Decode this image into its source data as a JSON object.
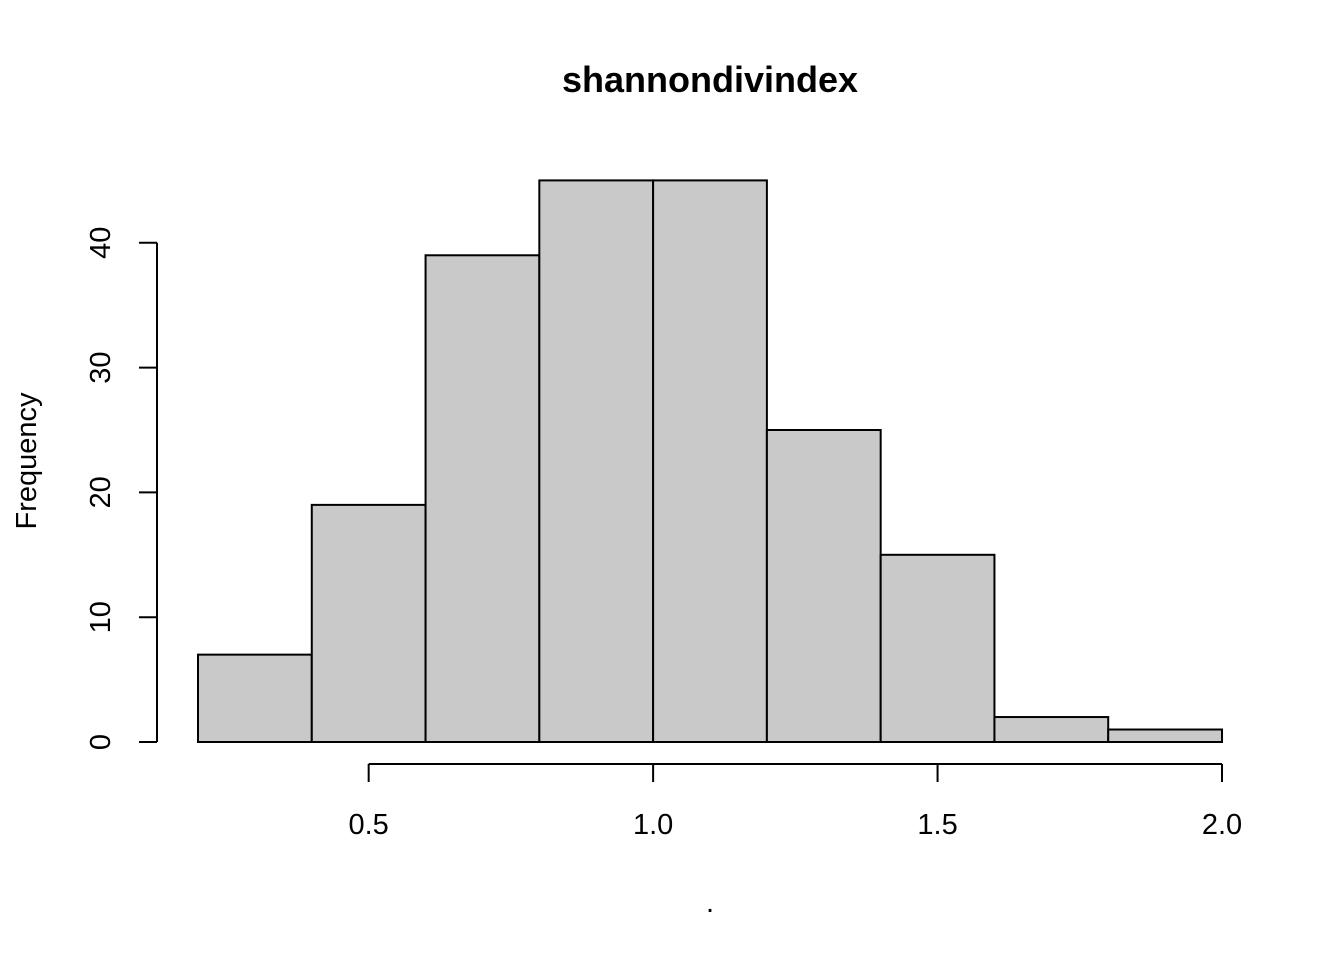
{
  "chart_data": {
    "type": "bar",
    "subtype": "histogram",
    "title": "shannondivindex",
    "xlabel": ".",
    "ylabel": "Frequency",
    "bins": [
      {
        "start": 0.2,
        "end": 0.4,
        "count": 7
      },
      {
        "start": 0.4,
        "end": 0.6,
        "count": 19
      },
      {
        "start": 0.6,
        "end": 0.8,
        "count": 39
      },
      {
        "start": 0.8,
        "end": 1.0,
        "count": 45
      },
      {
        "start": 1.0,
        "end": 1.2,
        "count": 45
      },
      {
        "start": 1.2,
        "end": 1.4,
        "count": 25
      },
      {
        "start": 1.4,
        "end": 1.6,
        "count": 15
      },
      {
        "start": 1.6,
        "end": 1.8,
        "count": 2
      },
      {
        "start": 1.8,
        "end": 2.0,
        "count": 1
      }
    ],
    "xticks": [
      0.5,
      1.0,
      1.5,
      2.0
    ],
    "xtick_labels": [
      "0.5",
      "1.0",
      "1.5",
      "2.0"
    ],
    "yticks": [
      0,
      10,
      20,
      30,
      40
    ],
    "ytick_labels": [
      "0",
      "10",
      "20",
      "30",
      "40"
    ],
    "xlim": [
      0.2,
      2.0
    ],
    "ylim": [
      0,
      45
    ],
    "grid": false,
    "legend": "none",
    "bar_color": "#c9c9c9",
    "edge_color": "#000000"
  }
}
